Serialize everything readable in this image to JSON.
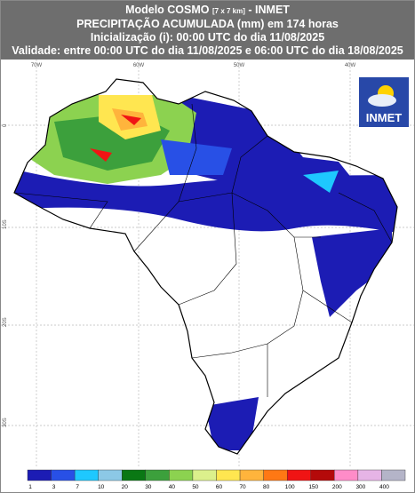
{
  "header": {
    "model": "Modelo COSMO",
    "resolution": "[7 x 7 km]",
    "suffix": "- INMET",
    "line2": "PRECIPITAÇÃO ACUMULADA (mm) em 174 horas",
    "line3": "Inicialização (i): 00:00 UTC do dia 11/08/2025",
    "line4": "Validade: entre 00:00 UTC do dia 11/08/2025 e 06:00 UTC do dia 18/08/2025"
  },
  "logo": {
    "label": "INMET"
  },
  "map": {
    "lon_labels": [
      "70W",
      "60W",
      "50W",
      "40W"
    ],
    "lat_labels": [
      "0",
      "10S",
      "20S",
      "30S"
    ]
  },
  "legend": {
    "items": [
      {
        "label": 1,
        "color": "#1c1cb4"
      },
      {
        "label": 3,
        "color": "#2850e6"
      },
      {
        "label": 7,
        "color": "#1ec8ff"
      },
      {
        "label": 10,
        "color": "#8cc8e6"
      },
      {
        "label": 20,
        "color": "#0a7814"
      },
      {
        "label": 30,
        "color": "#3ca03c"
      },
      {
        "label": 40,
        "color": "#8cd250"
      },
      {
        "label": 50,
        "color": "#dcf08c"
      },
      {
        "label": 60,
        "color": "#ffe650"
      },
      {
        "label": 70,
        "color": "#ffb43c"
      },
      {
        "label": 80,
        "color": "#ff7814"
      },
      {
        "label": 100,
        "color": "#f01414"
      },
      {
        "label": 150,
        "color": "#b40a0a"
      },
      {
        "label": 200,
        "color": "#ff8cc8"
      },
      {
        "label": 300,
        "color": "#e6b4e6"
      },
      {
        "label": 400,
        "color": "#b4b4c8"
      }
    ]
  }
}
